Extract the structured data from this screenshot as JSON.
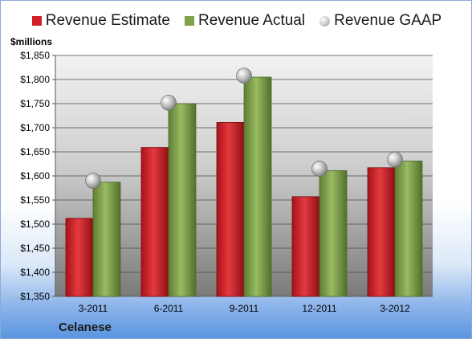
{
  "chart_data": {
    "type": "bar",
    "unit_label": "$millions",
    "categories": [
      "3-2011",
      "6-2011",
      "9-2011",
      "12-2011",
      "3-2012"
    ],
    "series": [
      {
        "name": "Revenue Estimate",
        "kind": "bar",
        "color": "#d01f26",
        "values": [
          1512,
          1659,
          1711,
          1557,
          1617
        ]
      },
      {
        "name": "Revenue Actual",
        "kind": "bar",
        "color": "#7ea14a",
        "values": [
          1587,
          1750,
          1805,
          1611,
          1631
        ]
      },
      {
        "name": "Revenue GAAP",
        "kind": "marker",
        "color": "#b8b8b8",
        "values": [
          1590,
          1752,
          1808,
          1615,
          1634
        ]
      }
    ],
    "ylim": [
      1350,
      1850
    ],
    "yticks": [
      1350,
      1400,
      1450,
      1500,
      1550,
      1600,
      1650,
      1700,
      1750,
      1800,
      1850
    ],
    "ytick_labels": [
      "$1,350",
      "$1,400",
      "$1,450",
      "$1,500",
      "$1,550",
      "$1,600",
      "$1,650",
      "$1,700",
      "$1,750",
      "$1,800",
      "$1,850"
    ],
    "grid": true,
    "legend_position": "top"
  },
  "footer": {
    "company": "Celanese"
  }
}
